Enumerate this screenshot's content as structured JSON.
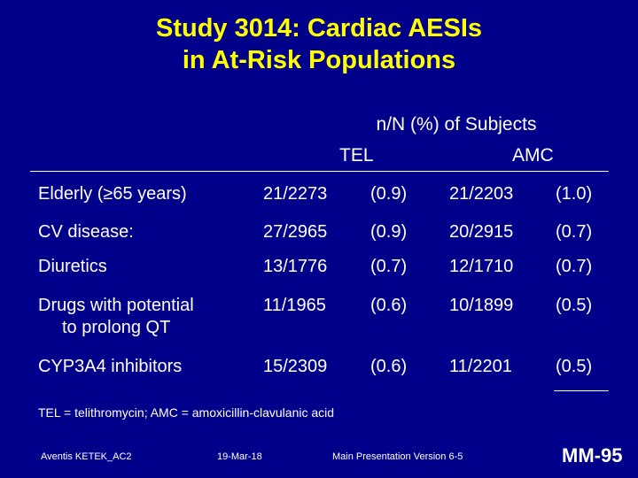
{
  "title": {
    "line1": "Study 3014: Cardiac AESIs",
    "line2": "in At-Risk Populations"
  },
  "columns": {
    "caption": "n/N (%) of Subjects",
    "tel": "TEL",
    "amc": "AMC"
  },
  "rows": [
    {
      "label": "Elderly (≥65 years)",
      "label2": "",
      "tel_n": "21/2273",
      "tel_pct": "(0.9)",
      "amc_n": "21/2203",
      "amc_pct": "(1.0)"
    },
    {
      "label": "CV disease:",
      "label2": "",
      "tel_n": "27/2965",
      "tel_pct": "(0.9)",
      "amc_n": "20/2915",
      "amc_pct": "(0.7)"
    },
    {
      "label": "Diuretics",
      "label2": "",
      "tel_n": "13/1776",
      "tel_pct": "(0.7)",
      "amc_n": "12/1710",
      "amc_pct": "(0.7)"
    },
    {
      "label": "Drugs with potential",
      "label2": "to prolong QT",
      "tel_n": "11/1965",
      "tel_pct": "(0.6)",
      "amc_n": "10/1899",
      "amc_pct": "(0.5)"
    },
    {
      "label": "CYP3A4 inhibitors",
      "label2": "",
      "tel_n": "15/2309",
      "tel_pct": "(0.6)",
      "amc_n": "11/2201",
      "amc_pct": "(0.5)"
    }
  ],
  "footnote": "TEL = telithromycin; AMC = amoxicillin-clavulanic acid",
  "footer": {
    "left": "Aventis KETEK_AC2",
    "date": "19-Mar-18",
    "version": "Main Presentation Version 6-5",
    "slide_number": "MM-95"
  }
}
